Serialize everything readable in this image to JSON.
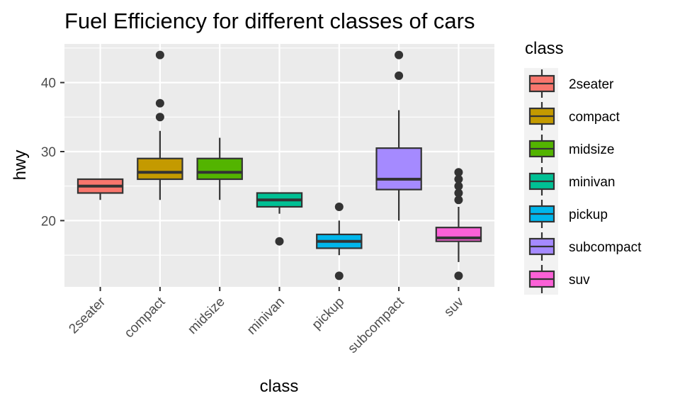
{
  "chart_data": {
    "type": "boxplot",
    "title": "Fuel Efficiency for different classes of cars",
    "xlabel": "class",
    "ylabel": "hwy",
    "ylim": [
      10.4,
      45.6
    ],
    "yticks": [
      20,
      30,
      40
    ],
    "legend": {
      "title": "class",
      "position": "right"
    },
    "grid": true,
    "categories": [
      "2seater",
      "compact",
      "midsize",
      "minivan",
      "pickup",
      "subcompact",
      "suv"
    ],
    "colors": [
      "#F8766D",
      "#C49A00",
      "#53B400",
      "#00C094",
      "#00B6EB",
      "#A58AFF",
      "#FB61D7"
    ],
    "boxes": [
      {
        "class": "2seater",
        "min": 23,
        "q1": 24,
        "median": 25,
        "q3": 26,
        "max": 26,
        "outliers": []
      },
      {
        "class": "compact",
        "min": 23,
        "q1": 26,
        "median": 27,
        "q3": 29,
        "max": 33,
        "outliers": [
          35,
          37,
          44
        ]
      },
      {
        "class": "midsize",
        "min": 23,
        "q1": 26,
        "median": 27,
        "q3": 29,
        "max": 32,
        "outliers": []
      },
      {
        "class": "minivan",
        "min": 21,
        "q1": 22,
        "median": 23,
        "q3": 24,
        "max": 24,
        "outliers": [
          17
        ]
      },
      {
        "class": "pickup",
        "min": 15,
        "q1": 16,
        "median": 17,
        "q3": 18,
        "max": 20,
        "outliers": [
          12,
          22
        ]
      },
      {
        "class": "subcompact",
        "min": 20,
        "q1": 24.5,
        "median": 26,
        "q3": 30.5,
        "max": 36,
        "outliers": [
          41,
          44
        ]
      },
      {
        "class": "suv",
        "min": 14,
        "q1": 17,
        "median": 17.5,
        "q3": 19,
        "max": 22,
        "outliers": [
          12,
          23,
          24,
          25,
          26,
          27
        ]
      }
    ]
  }
}
